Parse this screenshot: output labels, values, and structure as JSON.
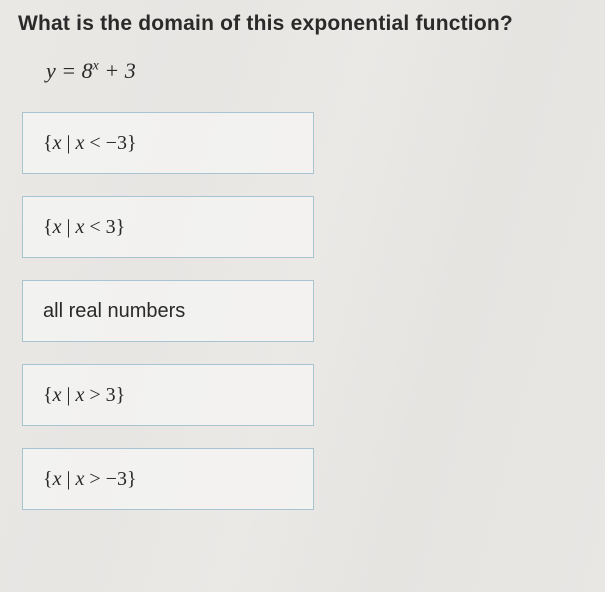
{
  "question": "What is the domain of this exponential function?",
  "equation": {
    "lhs": "y",
    "eq": " = ",
    "base": "8",
    "exp": "x",
    "tail": " + 3"
  },
  "options": [
    {
      "text": "{x | x < −3}",
      "is_math": true
    },
    {
      "text": "{x | x < 3}",
      "is_math": true
    },
    {
      "text": "all real numbers",
      "is_math": false
    },
    {
      "text": "{x | x > 3}",
      "is_math": true
    },
    {
      "text": "{x | x > −3}",
      "is_math": true
    }
  ],
  "styles": {
    "option_width": 292,
    "option_height": 62,
    "option_border_color": "#a8c4d0",
    "option_bg_color": "rgba(248, 248, 246, 0.65)",
    "question_fontsize": 21,
    "equation_fontsize": 22,
    "option_fontsize": 20,
    "text_color": "#2a2a2a"
  }
}
